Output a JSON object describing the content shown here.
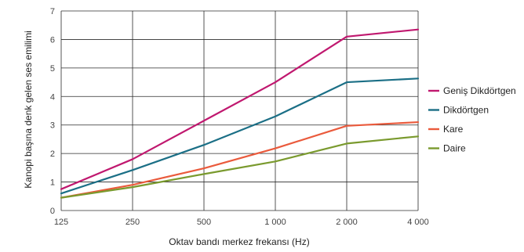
{
  "chart_data": {
    "type": "line",
    "xlabel": "Oktav bandı merkez frekansı (Hz)",
    "ylabel": "Kanopi başına denk gelen ses emilimi",
    "categories": [
      "125",
      "250",
      "500",
      "1 000",
      "2 000",
      "4 000"
    ],
    "yticks": [
      "0",
      "1",
      "2",
      "3",
      "4",
      "5",
      "6",
      "7"
    ],
    "ylim": [
      0,
      7
    ],
    "grid": true,
    "legend_position": "right",
    "series": [
      {
        "name": "Geniş Dikdörtgen",
        "color": "#c0186f",
        "values": [
          0.75,
          1.8,
          3.15,
          4.5,
          6.1,
          6.35
        ]
      },
      {
        "name": "Dikdörtgen",
        "color": "#1b6f86",
        "values": [
          0.6,
          1.42,
          2.3,
          3.3,
          4.5,
          4.63
        ]
      },
      {
        "name": "Kare",
        "color": "#ea5a3c",
        "values": [
          0.45,
          0.9,
          1.48,
          2.18,
          2.97,
          3.1
        ]
      },
      {
        "name": "Daire",
        "color": "#7a9a2e",
        "values": [
          0.45,
          0.82,
          1.28,
          1.72,
          2.35,
          2.6
        ]
      }
    ]
  }
}
